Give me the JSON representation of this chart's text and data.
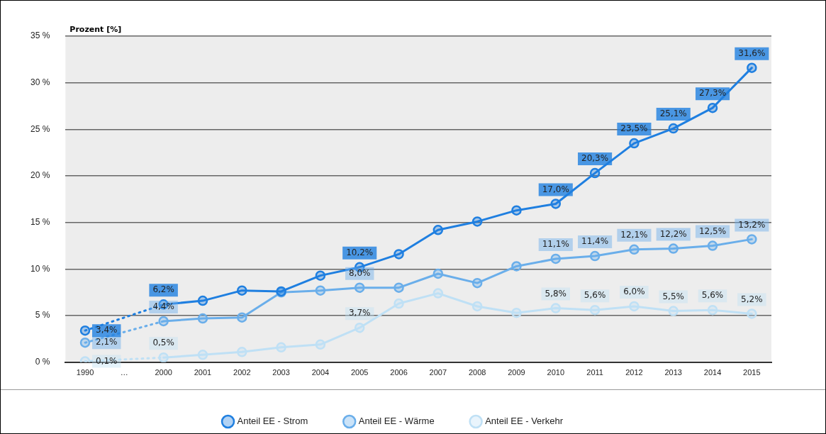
{
  "chart_data": {
    "type": "line",
    "ylabel": "Prozent [%]",
    "categories": [
      "1990",
      "…",
      "2000",
      "2001",
      "2002",
      "2003",
      "2004",
      "2005",
      "2006",
      "2007",
      "2008",
      "2009",
      "2010",
      "2011",
      "2012",
      "2013",
      "2014",
      "2015"
    ],
    "series": [
      {
        "name": "Anteil EE - Strom",
        "color": "#1f7fe0",
        "values": [
          3.4,
          null,
          6.2,
          6.6,
          7.7,
          7.6,
          9.3,
          10.2,
          11.6,
          14.2,
          15.1,
          16.3,
          17.0,
          20.3,
          23.5,
          25.1,
          27.3,
          31.6
        ],
        "value_labels": [
          "3,4%",
          null,
          "6,2%",
          null,
          null,
          null,
          null,
          "10,2%",
          null,
          null,
          null,
          null,
          "17,0%",
          "20,3%",
          "23,5%",
          "25,1%",
          "27,3%",
          "31,6%"
        ]
      },
      {
        "name": "Anteil EE - Wärme",
        "color": "#6aaeea",
        "values": [
          2.1,
          null,
          4.4,
          4.7,
          4.8,
          7.5,
          7.7,
          8.0,
          8.0,
          9.5,
          8.5,
          10.3,
          11.1,
          11.4,
          12.1,
          12.2,
          12.5,
          13.2
        ],
        "value_labels": [
          "2,1%",
          null,
          "4,4%",
          null,
          null,
          null,
          null,
          "8,0%",
          null,
          null,
          null,
          null,
          "11,1%",
          "11,4%",
          "12,1%",
          "12,2%",
          "12,5%",
          "13,2%"
        ]
      },
      {
        "name": "Anteil EE - Verkehr",
        "color": "#bfe0f5",
        "values": [
          0.1,
          null,
          0.5,
          0.8,
          1.1,
          1.6,
          1.9,
          3.7,
          6.3,
          7.4,
          6.0,
          5.3,
          5.8,
          5.6,
          6.0,
          5.5,
          5.6,
          5.2
        ],
        "value_labels": [
          "0,1%",
          null,
          "0,5%",
          null,
          null,
          null,
          null,
          "3,7%",
          null,
          null,
          null,
          null,
          "5,8%",
          "5,6%",
          "6,0%",
          "5,5%",
          "5,6%",
          "5,2%"
        ]
      }
    ],
    "ylim": [
      0,
      35
    ],
    "yticks": [
      {
        "value": 0,
        "label": "0 %"
      },
      {
        "value": 5,
        "label": "5 %"
      },
      {
        "value": 10,
        "label": "10 %"
      },
      {
        "value": 15,
        "label": "15 %"
      },
      {
        "value": 20,
        "label": "20 %"
      },
      {
        "value": 25,
        "label": "25 %"
      },
      {
        "value": 30,
        "label": "30 %"
      },
      {
        "value": 35,
        "label": "35 %"
      }
    ],
    "grid": "y",
    "legend": "bottom",
    "marker": "circle",
    "line_style": "solid"
  }
}
